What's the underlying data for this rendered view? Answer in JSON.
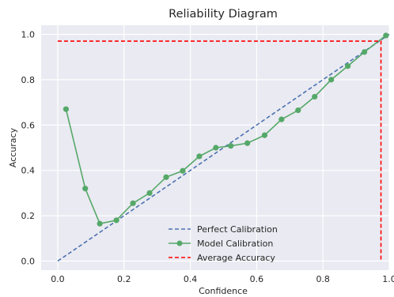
{
  "chart_data": {
    "type": "line",
    "title": "Reliability Diagram",
    "xlabel": "Confidence",
    "ylabel": "Accuracy",
    "xlim": [
      -0.05,
      1.0
    ],
    "ylim": [
      -0.04,
      1.04
    ],
    "x_ticks": [
      "0.0",
      "0.2",
      "0.4",
      "0.6",
      "0.8",
      "1.0"
    ],
    "y_ticks": [
      "0.0",
      "0.2",
      "0.4",
      "0.6",
      "0.8",
      "1.0"
    ],
    "grid": true,
    "legend_position": "bottom-center",
    "series": [
      {
        "name": "Perfect Calibration",
        "style": "dashed",
        "color": "#4c72b0",
        "x": [
          0.0,
          1.0
        ],
        "y": [
          0.0,
          1.0
        ]
      },
      {
        "name": "Model Calibration",
        "style": "solid-markers",
        "color": "#55a868",
        "x": [
          0.025,
          0.083,
          0.127,
          0.177,
          0.227,
          0.277,
          0.327,
          0.377,
          0.427,
          0.477,
          0.522,
          0.572,
          0.624,
          0.675,
          0.725,
          0.775,
          0.825,
          0.875,
          0.925,
          0.99
        ],
        "y": [
          0.67,
          0.32,
          0.165,
          0.18,
          0.255,
          0.3,
          0.37,
          0.398,
          0.462,
          0.5,
          0.508,
          0.52,
          0.555,
          0.625,
          0.665,
          0.725,
          0.8,
          0.86,
          0.922,
          0.995
        ]
      },
      {
        "name": "Average Accuracy",
        "style": "dashed",
        "color": "#ff0000",
        "x": [
          0.0,
          0.975,
          0.975
        ],
        "y": [
          0.97,
          0.97,
          0.0
        ]
      }
    ]
  }
}
